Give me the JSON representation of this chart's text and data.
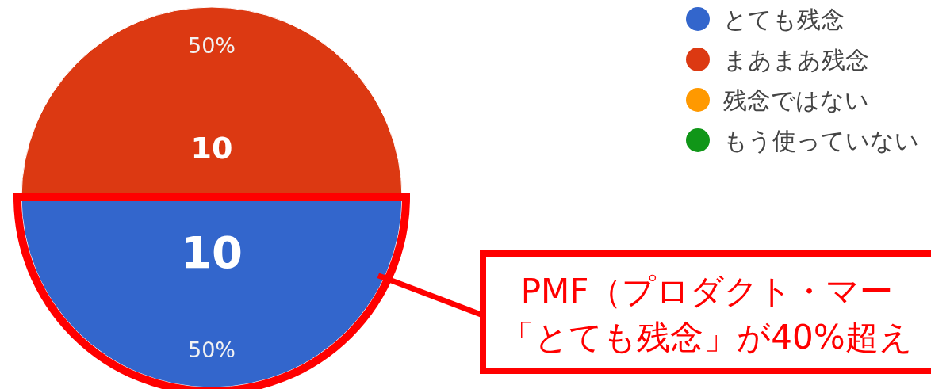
{
  "chart_data": {
    "type": "pie",
    "categories": [
      "とても残念",
      "まあまあ残念",
      "残念ではない",
      "もう使っていない"
    ],
    "values": [
      10,
      10,
      0,
      0
    ],
    "colors": [
      "#3366cc",
      "#dc3912",
      "#ff9900",
      "#109618"
    ],
    "data_labels": true,
    "legend": "top right",
    "annotations": [
      {
        "text": "50%",
        "x": "とても残念"
      },
      {
        "text": "50%",
        "x": "まあまあ残念"
      },
      {
        "text": "PMF（プロダクト・マー",
        "x": "とても残念"
      },
      {
        "text": "「とても残念」が40%超え",
        "x": "とても残念"
      }
    ]
  }
}
